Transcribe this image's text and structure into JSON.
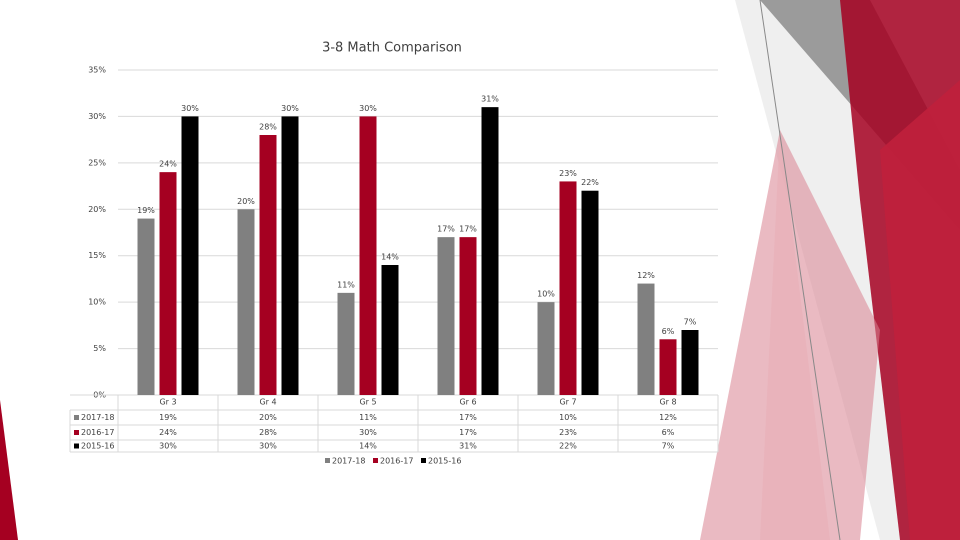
{
  "chart_data": {
    "type": "bar",
    "title": "3-8 Math Comparison",
    "categories": [
      "Gr 3",
      "Gr 4",
      "Gr 5",
      "Gr 6",
      "Gr 7",
      "Gr 8"
    ],
    "series": [
      {
        "name": "2017-18",
        "color": "#808080",
        "values": [
          19,
          20,
          11,
          17,
          10,
          12
        ],
        "value_labels": [
          "19%",
          "20%",
          "11%",
          "17%",
          "10%",
          "12%"
        ]
      },
      {
        "name": "2016-17",
        "color": "#a50021",
        "values": [
          24,
          28,
          30,
          17,
          23,
          6
        ],
        "value_labels": [
          "24%",
          "28%",
          "30%",
          "17%",
          "23%",
          "6%"
        ]
      },
      {
        "name": "2015-16",
        "color": "#000000",
        "values": [
          30,
          30,
          14,
          31,
          22,
          7
        ],
        "value_labels": [
          "30%",
          "30%",
          "14%",
          "31%",
          "22%",
          "7%"
        ]
      }
    ],
    "ylim": [
      0,
      35
    ],
    "yticks": [
      {
        "value": 0,
        "label": "0%"
      },
      {
        "value": 5,
        "label": "5%"
      },
      {
        "value": 10,
        "label": "10%"
      },
      {
        "value": 15,
        "label": "15%"
      },
      {
        "value": 20,
        "label": "20%"
      },
      {
        "value": 25,
        "label": "25%"
      },
      {
        "value": 30,
        "label": "30%"
      },
      {
        "value": 35,
        "label": "35%"
      }
    ],
    "grid": true
  }
}
